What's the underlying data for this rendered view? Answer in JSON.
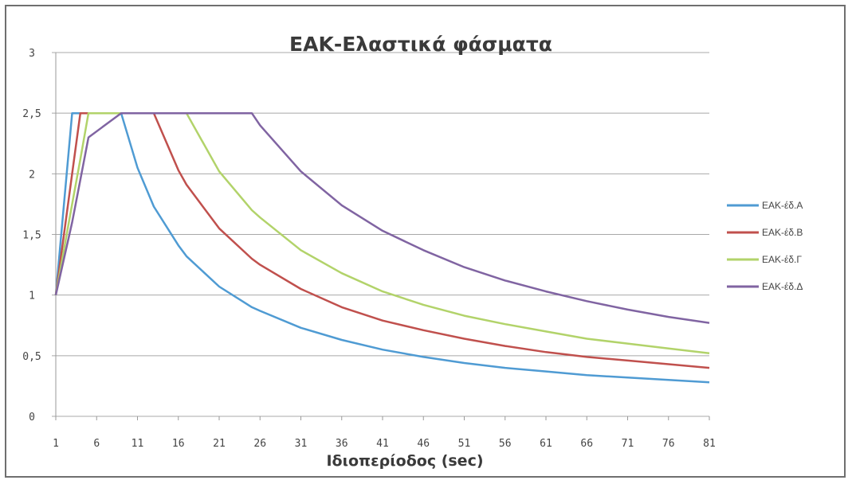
{
  "chart_data": {
    "type": "line",
    "title": "ΕΑΚ-Ελαστικά φάσματα",
    "xlabel": "Ιδιοπερίοδος (sec)",
    "ylabel": "",
    "x": [
      1,
      3,
      4,
      5,
      9,
      11,
      13,
      16,
      17,
      21,
      25,
      26,
      31,
      36,
      41,
      46,
      51,
      56,
      61,
      66,
      71,
      76,
      81
    ],
    "x_ticks": [
      "1",
      "6",
      "11",
      "16",
      "21",
      "26",
      "31",
      "36",
      "41",
      "46",
      "51",
      "56",
      "61",
      "66",
      "71",
      "76",
      "81"
    ],
    "y_ticks": [
      "0",
      "0,5",
      "1",
      "1,5",
      "2",
      "2,5",
      "3"
    ],
    "xlim": [
      1,
      81
    ],
    "ylim": [
      0,
      3
    ],
    "grid": true,
    "legend_position": "right",
    "series": [
      {
        "name": "ΕΑΚ-έδ.Α",
        "color": "#4f9bd3",
        "values": [
          1,
          2.5,
          2.5,
          2.5,
          2.5,
          2.05,
          1.73,
          1.41,
          1.32,
          1.07,
          0.9,
          0.87,
          0.73,
          0.63,
          0.55,
          0.49,
          0.44,
          0.4,
          0.37,
          0.34,
          0.32,
          0.3,
          0.28
        ]
      },
      {
        "name": "ΕΑΚ-έδ.Β",
        "color": "#c0504d",
        "values": [
          1,
          2,
          2.5,
          2.5,
          2.5,
          2.5,
          2.5,
          2.03,
          1.91,
          1.55,
          1.3,
          1.25,
          1.05,
          0.9,
          0.79,
          0.71,
          0.64,
          0.58,
          0.53,
          0.49,
          0.46,
          0.43,
          0.4
        ]
      },
      {
        "name": "ΕΑΚ-έδ.Γ",
        "color": "#b2d36a",
        "values": [
          1,
          1.75,
          2.12,
          2.5,
          2.5,
          2.5,
          2.5,
          2.5,
          2.5,
          2.02,
          1.7,
          1.64,
          1.37,
          1.18,
          1.03,
          0.92,
          0.83,
          0.76,
          0.7,
          0.64,
          0.6,
          0.56,
          0.52
        ]
      },
      {
        "name": "ΕΑΚ-έδ.Δ",
        "color": "#8064a2",
        "values": [
          1,
          1.6,
          1.95,
          2.3,
          2.5,
          2.5,
          2.5,
          2.5,
          2.5,
          2.5,
          2.5,
          2.4,
          2.02,
          1.74,
          1.53,
          1.37,
          1.23,
          1.12,
          1.03,
          0.95,
          0.88,
          0.82,
          0.77
        ]
      }
    ]
  }
}
